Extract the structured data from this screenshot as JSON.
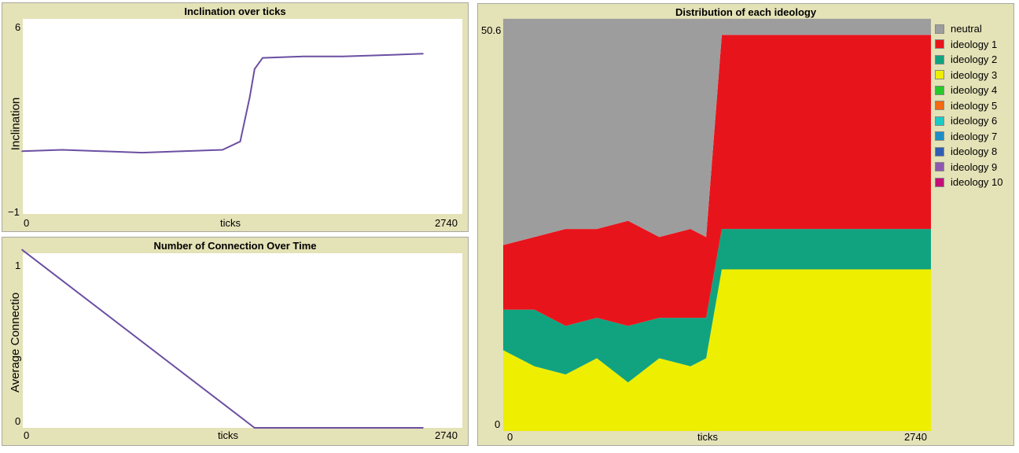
{
  "plot1": {
    "title": "Inclination over ticks",
    "ylabel": "Inclination",
    "xlabel": "ticks",
    "ymin_label": "−1",
    "ymax_label": "6",
    "xmin_label": "0",
    "xmax_label": "2740"
  },
  "plot2": {
    "title": "Number of Connection Over Time",
    "ylabel": "Average Connectio",
    "xlabel": "ticks",
    "ymin_label": "0",
    "ymax_label": "1",
    "xmin_label": "0",
    "xmax_label": "2740"
  },
  "plot3": {
    "title": "Distribution of each ideology",
    "xlabel": "ticks",
    "ymin_label": "0",
    "ymax_label": "50.6",
    "xmin_label": "0",
    "xmax_label": "2740"
  },
  "legend": [
    {
      "label": "neutral",
      "color": "#9d9d9d"
    },
    {
      "label": "ideology 1",
      "color": "#e8141c"
    },
    {
      "label": "ideology 2",
      "color": "#11a37f"
    },
    {
      "label": "ideology 3",
      "color": "#eeee00"
    },
    {
      "label": "ideology 4",
      "color": "#2ac82a"
    },
    {
      "label": "ideology 5",
      "color": "#f26a13"
    },
    {
      "label": "ideology 6",
      "color": "#1dc9c3"
    },
    {
      "label": "ideology 7",
      "color": "#1f8ec4"
    },
    {
      "label": "ideology 8",
      "color": "#2f5db2"
    },
    {
      "label": "ideology 9",
      "color": "#8f58b0"
    },
    {
      "label": "ideology 10",
      "color": "#c21077"
    }
  ],
  "chart_data": [
    {
      "type": "line",
      "title": "Inclination over ticks",
      "xlabel": "ticks",
      "ylabel": "Inclination",
      "xlim": [
        0,
        2740
      ],
      "ylim": [
        -1,
        6
      ],
      "series": [
        {
          "color": "#6b4fa1",
          "x": [
            0,
            250,
            500,
            750,
            1000,
            1250,
            1360,
            1420,
            1450,
            1500,
            1750,
            2000,
            2250,
            2500
          ],
          "y": [
            1.25,
            1.3,
            1.25,
            1.2,
            1.25,
            1.3,
            1.6,
            3.2,
            4.2,
            4.6,
            4.65,
            4.65,
            4.7,
            4.75
          ]
        }
      ]
    },
    {
      "type": "line",
      "title": "Number of Connection Over Time",
      "xlabel": "ticks",
      "ylabel": "Average Connectio",
      "xlim": [
        0,
        2740
      ],
      "ylim": [
        0,
        1
      ],
      "series": [
        {
          "color": "#6b4fa1",
          "x": [
            0,
            1450,
            2500
          ],
          "y": [
            1.02,
            0,
            0
          ]
        }
      ]
    },
    {
      "type": "area",
      "title": "Distribution of each ideology",
      "xlabel": "ticks",
      "xlim": [
        0,
        2740
      ],
      "ylim": [
        0,
        50.6
      ],
      "stacked": true,
      "x": [
        0,
        200,
        400,
        600,
        800,
        1000,
        1200,
        1300,
        1400,
        1500,
        1700,
        2000,
        2300,
        2500,
        2740
      ],
      "series": [
        {
          "name": "ideology 3",
          "color": "#eeee00",
          "values": [
            10,
            8,
            7,
            9,
            6,
            9,
            8,
            9,
            20,
            20,
            20,
            20,
            20,
            20,
            20
          ]
        },
        {
          "name": "ideology 2",
          "color": "#11a37f",
          "values": [
            5,
            7,
            6,
            5,
            7,
            5,
            6,
            5,
            5,
            5,
            5,
            5,
            5,
            5,
            5
          ]
        },
        {
          "name": "ideology 1",
          "color": "#e8141c",
          "values": [
            8,
            9,
            12,
            11,
            13,
            10,
            11,
            10,
            24,
            24,
            24,
            24,
            24,
            24,
            24
          ]
        },
        {
          "name": "neutral",
          "color": "#9d9d9d",
          "values": [
            28,
            27,
            26,
            26,
            25,
            27,
            26,
            27,
            2,
            2,
            2,
            2,
            2,
            2,
            2
          ]
        }
      ]
    }
  ]
}
